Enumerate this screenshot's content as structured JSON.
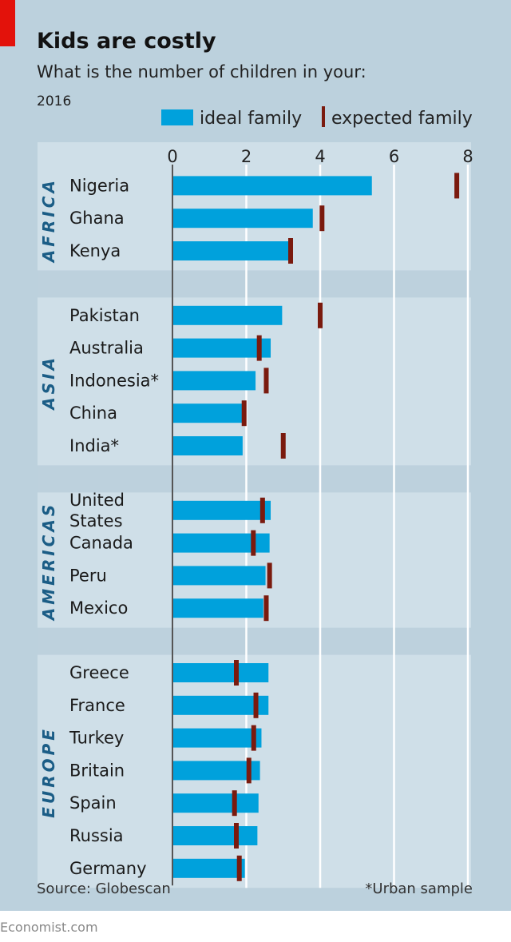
{
  "chart_data": {
    "type": "bar",
    "title": "Kids are costly",
    "subtitle": "What is the number of children in your:",
    "year": "2016",
    "xlim": [
      0,
      8
    ],
    "xticks": [
      0,
      2,
      4,
      6,
      8
    ],
    "grid": true,
    "legend_placement": "top-right",
    "series": [
      {
        "name": "ideal family",
        "color": "#00a1dc",
        "mark": "bar"
      },
      {
        "name": "expected family",
        "color": "#7a1a0e",
        "mark": "tick"
      }
    ],
    "groups": [
      {
        "region": "AFRICA",
        "rows": [
          {
            "label": "Nigeria",
            "ideal": 5.4,
            "expected": 7.7
          },
          {
            "label": "Ghana",
            "ideal": 3.8,
            "expected": 4.05
          },
          {
            "label": "Kenya",
            "ideal": 3.15,
            "expected": 3.2
          }
        ]
      },
      {
        "region": "ASIA",
        "rows": [
          {
            "label": "Pakistan",
            "ideal": 2.97,
            "expected": 4.0
          },
          {
            "label": "Australia",
            "ideal": 2.66,
            "expected": 2.35
          },
          {
            "label": "Indonesia*",
            "ideal": 2.25,
            "expected": 2.54
          },
          {
            "label": "China",
            "ideal": 1.91,
            "expected": 1.94
          },
          {
            "label": "India*",
            "ideal": 1.9,
            "expected": 3.0
          }
        ]
      },
      {
        "region": "AMERICAS",
        "rows": [
          {
            "label": "United States",
            "ideal": 2.66,
            "expected": 2.44
          },
          {
            "label": "Canada",
            "ideal": 2.63,
            "expected": 2.19
          },
          {
            "label": "Peru",
            "ideal": 2.52,
            "expected": 2.63
          },
          {
            "label": "Mexico",
            "ideal": 2.46,
            "expected": 2.54
          }
        ]
      },
      {
        "region": "EUROPE",
        "rows": [
          {
            "label": "Greece",
            "ideal": 2.6,
            "expected": 1.73
          },
          {
            "label": "France",
            "ideal": 2.6,
            "expected": 2.26
          },
          {
            "label": "Turkey",
            "ideal": 2.41,
            "expected": 2.2
          },
          {
            "label": "Britain",
            "ideal": 2.37,
            "expected": 2.07
          },
          {
            "label": "Spain",
            "ideal": 2.33,
            "expected": 1.68
          },
          {
            "label": "Russia",
            "ideal": 2.3,
            "expected": 1.73
          },
          {
            "label": "Germany",
            "ideal": 1.96,
            "expected": 1.81
          }
        ]
      }
    ],
    "source": "Source: Globescan",
    "note": "*Urban sample",
    "brand": "Economist.com"
  },
  "colors": {
    "background": "#bcd1dd",
    "panel": "#cfdfe8",
    "accent": "#e3120b"
  }
}
